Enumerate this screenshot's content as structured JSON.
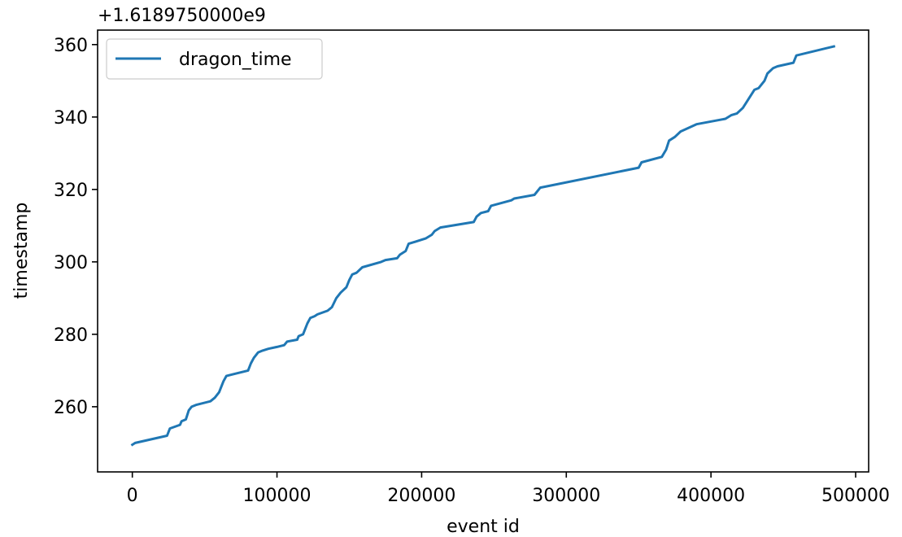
{
  "chart_data": {
    "type": "line",
    "offset_label": "+1.6189750000e9",
    "xlabel": "event id",
    "ylabel": "timestamp",
    "xlim": [
      -24000,
      509000
    ],
    "ylim": [
      242,
      364
    ],
    "xticks": [
      0,
      100000,
      200000,
      300000,
      400000,
      500000
    ],
    "xtick_labels": [
      "0",
      "100000",
      "200000",
      "300000",
      "400000",
      "500000"
    ],
    "yticks": [
      260,
      280,
      300,
      320,
      340,
      360
    ],
    "ytick_labels": [
      "260",
      "280",
      "300",
      "320",
      "340",
      "360"
    ],
    "grid": false,
    "legend_position": "upper left",
    "colors": {
      "series": "#1f77b4"
    },
    "series": [
      {
        "name": "dragon_time",
        "x": [
          0,
          2000,
          24000,
          26000,
          33000,
          34000,
          37000,
          39000,
          41000,
          44000,
          54000,
          57000,
          60000,
          63000,
          65000,
          70000,
          80000,
          82000,
          84000,
          87000,
          90000,
          94000,
          100000,
          105000,
          107000,
          114000,
          115000,
          118000,
          121000,
          123000,
          126000,
          128000,
          135000,
          138000,
          141000,
          144000,
          148000,
          150000,
          152000,
          155000,
          159000,
          172000,
          175000,
          183000,
          185000,
          189000,
          191000,
          195000,
          203000,
          207000,
          209000,
          213000,
          236000,
          238000,
          241000,
          246000,
          248000,
          262000,
          264000,
          278000,
          282000,
          350000,
          352000,
          366000,
          369000,
          371000,
          375000,
          379000,
          390000,
          410000,
          414000,
          418000,
          422000,
          426000,
          430000,
          433000,
          437000,
          439000,
          443000,
          446000,
          457000,
          459000,
          485000
        ],
        "y": [
          249.5,
          250,
          252,
          254,
          255,
          256,
          256.5,
          259,
          260,
          260.5,
          261.5,
          262.5,
          264,
          267,
          268.5,
          269,
          270,
          272,
          273.5,
          275,
          275.5,
          276,
          276.5,
          277,
          278,
          278.5,
          279.5,
          280,
          283,
          284.5,
          285,
          285.5,
          286.5,
          287.5,
          290,
          291.5,
          293,
          295,
          296.5,
          297,
          298.5,
          300,
          300.5,
          301,
          302,
          303,
          305,
          305.5,
          306.5,
          307.5,
          308.5,
          309.5,
          311,
          312.5,
          313.5,
          314,
          315.5,
          317,
          317.5,
          318.5,
          320.5,
          326,
          327.5,
          329,
          331,
          333.5,
          334.5,
          336,
          338,
          339.5,
          340.5,
          341,
          342.5,
          345,
          347.5,
          348,
          350,
          352,
          353.5,
          354,
          355,
          357,
          359.5
        ]
      }
    ]
  }
}
